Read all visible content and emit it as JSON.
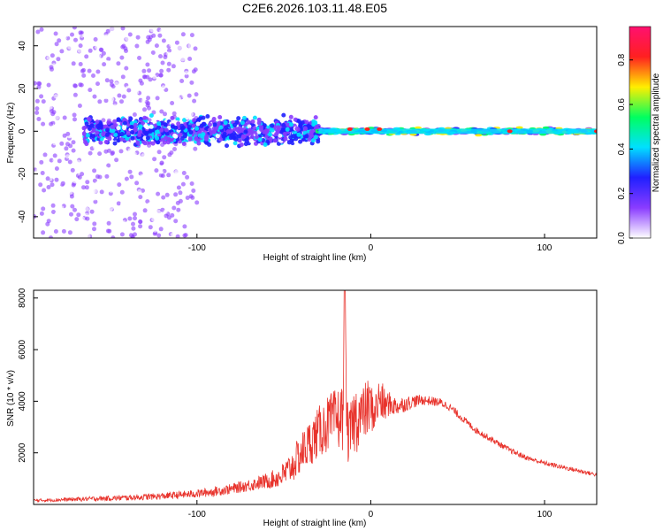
{
  "title": "C2E6.2026.103.11.48.E05",
  "chart_data": [
    {
      "type": "heatmap",
      "xlabel": "Height of straight line (km)",
      "ylabel": "Frequency (Hz)",
      "xlim": [
        -194,
        130
      ],
      "ylim": [
        -50,
        49
      ],
      "xticks": [
        -100,
        0,
        100
      ],
      "xtick_labels": [
        "-100",
        "0",
        "100"
      ],
      "yticks": [
        -40,
        -20,
        0,
        20,
        40
      ],
      "ytick_labels": [
        "-40",
        "-20",
        "0",
        "20",
        "40"
      ],
      "colorbar": {
        "label": "Normalized spectral amplitude",
        "range": [
          0,
          0.95
        ],
        "ticks": [
          0,
          0.2,
          0.4,
          0.6,
          0.8
        ],
        "tick_labels": [
          "0.0",
          "0.2",
          "0.4",
          "0.6",
          "0.8"
        ],
        "colors": [
          "#ffffff",
          "#8a3cff",
          "#2020ff",
          "#00e0ff",
          "#00ff60",
          "#ffee00",
          "#ff2020",
          "#ff1070"
        ]
      },
      "features": [
        {
          "name": "scattered noise",
          "x_range": [
            -194,
            -100
          ],
          "y_range": [
            -50,
            49
          ],
          "amplitude": 0.15
        },
        {
          "name": "broad band",
          "x_range": [
            -165,
            -30
          ],
          "y_range": [
            -8,
            8
          ],
          "amplitude": 0.35
        },
        {
          "name": "narrow line",
          "x_range": [
            -30,
            130
          ],
          "y_range": [
            -2,
            2
          ],
          "amplitude": 0.55
        },
        {
          "name": "peak points",
          "x": [
            -12,
            -2,
            5,
            80,
            130
          ],
          "y": [
            1,
            1,
            1,
            0,
            0
          ],
          "amplitude": 0.9
        }
      ]
    },
    {
      "type": "line",
      "xlabel": "Height of straight line (km)",
      "ylabel": "SNR (10 * v/v)",
      "xlim": [
        -194,
        130
      ],
      "ylim": [
        0,
        8300
      ],
      "xticks": [
        -100,
        0,
        100
      ],
      "xtick_labels": [
        "-100",
        "0",
        "100"
      ],
      "yticks": [
        2000,
        4000,
        6000,
        8000
      ],
      "ytick_labels": [
        "2000",
        "4000",
        "6000",
        "8000"
      ],
      "series": [
        {
          "name": "SNR",
          "color": "#e8332c",
          "x": [
            -194,
            -180,
            -160,
            -140,
            -120,
            -100,
            -90,
            -80,
            -70,
            -60,
            -55,
            -50,
            -45,
            -40,
            -35,
            -30,
            -25,
            -20,
            -16,
            -15,
            -13,
            -10,
            -8,
            -5,
            -2,
            0,
            2,
            5,
            8,
            10,
            15,
            20,
            25,
            30,
            35,
            40,
            45,
            50,
            55,
            60,
            70,
            80,
            90,
            100,
            110,
            120,
            130
          ],
          "values": [
            150,
            180,
            220,
            260,
            320,
            420,
            500,
            600,
            750,
            900,
            1000,
            1150,
            1500,
            2000,
            2400,
            2800,
            3100,
            3300,
            3400,
            5200,
            2500,
            3200,
            3400,
            3500,
            3700,
            3800,
            3500,
            4100,
            3800,
            3900,
            3800,
            3900,
            4000,
            4050,
            4000,
            3950,
            3800,
            3500,
            3200,
            2900,
            2500,
            2100,
            1800,
            1600,
            1450,
            1300,
            1150
          ],
          "noise": [
            60,
            70,
            90,
            110,
            130,
            160,
            180,
            200,
            240,
            300,
            380,
            500,
            650,
            800,
            900,
            1000,
            1100,
            1200,
            1300,
            2600,
            900,
            1300,
            1400,
            1000,
            1200,
            1000,
            700,
            900,
            700,
            500,
            350,
            300,
            250,
            200,
            180,
            170,
            160,
            150,
            140,
            130,
            120,
            110,
            100,
            95,
            90,
            85,
            80
          ]
        }
      ]
    }
  ]
}
